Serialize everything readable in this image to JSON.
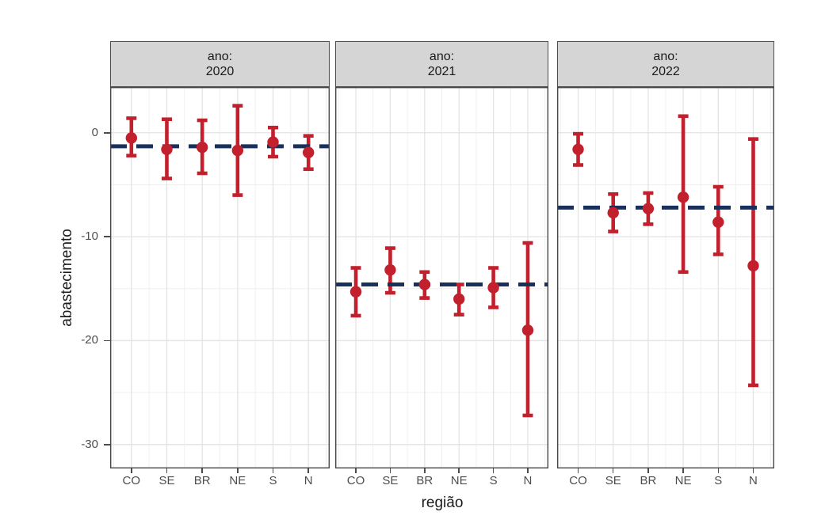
{
  "chart_data": {
    "type": "pointrange",
    "xlabel": "região",
    "ylabel": "abastecimento",
    "categories": [
      "CO",
      "SE",
      "BR",
      "NE",
      "S",
      "N"
    ],
    "ytick_labels": [
      "0",
      "-10",
      "-20",
      "-30"
    ],
    "ytick_values": [
      0,
      -10,
      -20,
      -30
    ],
    "yminor_values": [
      -5,
      -15,
      -25
    ],
    "ylim": [
      4.4,
      -32.3
    ],
    "grid": true,
    "legend_position": "none",
    "facet_prefix": "ano:",
    "facets": [
      {
        "year": "2020",
        "baseline": -1.3,
        "points": [
          {
            "cat": "CO",
            "y": -0.5,
            "lo": -2.2,
            "hi": 1.4
          },
          {
            "cat": "SE",
            "y": -1.6,
            "lo": -4.4,
            "hi": 1.3
          },
          {
            "cat": "BR",
            "y": -1.4,
            "lo": -3.9,
            "hi": 1.2
          },
          {
            "cat": "NE",
            "y": -1.7,
            "lo": -6.0,
            "hi": 2.6
          },
          {
            "cat": "S",
            "y": -0.9,
            "lo": -2.3,
            "hi": 0.5
          },
          {
            "cat": "N",
            "y": -1.9,
            "lo": -3.5,
            "hi": -0.3
          }
        ]
      },
      {
        "year": "2021",
        "baseline": -14.6,
        "points": [
          {
            "cat": "CO",
            "y": -15.3,
            "lo": -17.6,
            "hi": -13.0
          },
          {
            "cat": "SE",
            "y": -13.2,
            "lo": -15.4,
            "hi": -11.1
          },
          {
            "cat": "BR",
            "y": -14.6,
            "lo": -15.9,
            "hi": -13.4
          },
          {
            "cat": "NE",
            "y": -16.0,
            "lo": -17.5,
            "hi": -14.6
          },
          {
            "cat": "S",
            "y": -14.9,
            "lo": -16.8,
            "hi": -13.0
          },
          {
            "cat": "N",
            "y": -19.0,
            "lo": -27.2,
            "hi": -10.6
          }
        ]
      },
      {
        "year": "2022",
        "baseline": -7.2,
        "points": [
          {
            "cat": "CO",
            "y": -1.6,
            "lo": -3.1,
            "hi": -0.1
          },
          {
            "cat": "SE",
            "y": -7.7,
            "lo": -9.5,
            "hi": -5.9
          },
          {
            "cat": "BR",
            "y": -7.3,
            "lo": -8.8,
            "hi": -5.8
          },
          {
            "cat": "NE",
            "y": -6.2,
            "lo": -13.4,
            "hi": 1.6
          },
          {
            "cat": "S",
            "y": -8.6,
            "lo": -11.7,
            "hi": -5.2
          },
          {
            "cat": "N",
            "y": -12.8,
            "lo": -24.3,
            "hi": -0.6
          }
        ]
      }
    ],
    "colors": {
      "point": "#C2202D",
      "errorbar": "#C2202D",
      "baseline": "#18305A",
      "strip_bg": "#D5D5D5",
      "strip_border": "#4F4F4F",
      "panel_border": "#474747",
      "gridline_major": "#E3E3E3",
      "gridline_minor": "#ECECEC",
      "axis_text": "#4D4D4D",
      "title_text": "#1C1C1C"
    }
  }
}
